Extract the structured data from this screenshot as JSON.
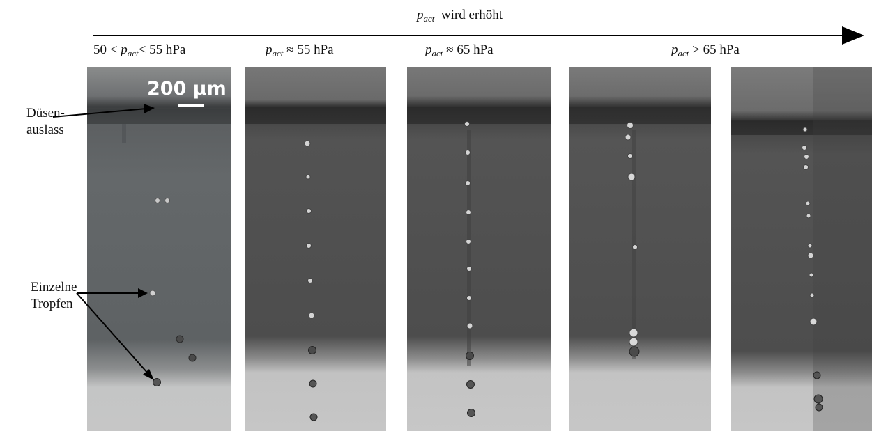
{
  "header": {
    "arrow_label_var": "p",
    "arrow_label_sub": "act",
    "arrow_label_text": "wird erhöht"
  },
  "conditions": [
    {
      "pre": "50 < ",
      "var": "p",
      "sub": "act",
      "post": "< 55 hPa"
    },
    {
      "pre": "",
      "var": "p",
      "sub": "act",
      "post": " ≈ 55 hPa"
    },
    {
      "pre": "",
      "var": "p",
      "sub": "act",
      "post": " ≈ 65 hPa"
    },
    {
      "pre": "",
      "var": "p",
      "sub": "act",
      "post": " > 65 hPa"
    }
  ],
  "annotations": {
    "nozzle_line1": "Düsen-",
    "nozzle_line2": "auslass",
    "drops_line1": "Einzelne",
    "drops_line2": "Tropfen"
  },
  "scale_bar": {
    "label": "200 µm"
  },
  "colors": {
    "nozzle_band": "#2e2e2e",
    "liquid_dark": "#555555",
    "liquid_light": "#c4c4c4",
    "droplet": "#3a3a3a",
    "arrow": "#000000"
  }
}
